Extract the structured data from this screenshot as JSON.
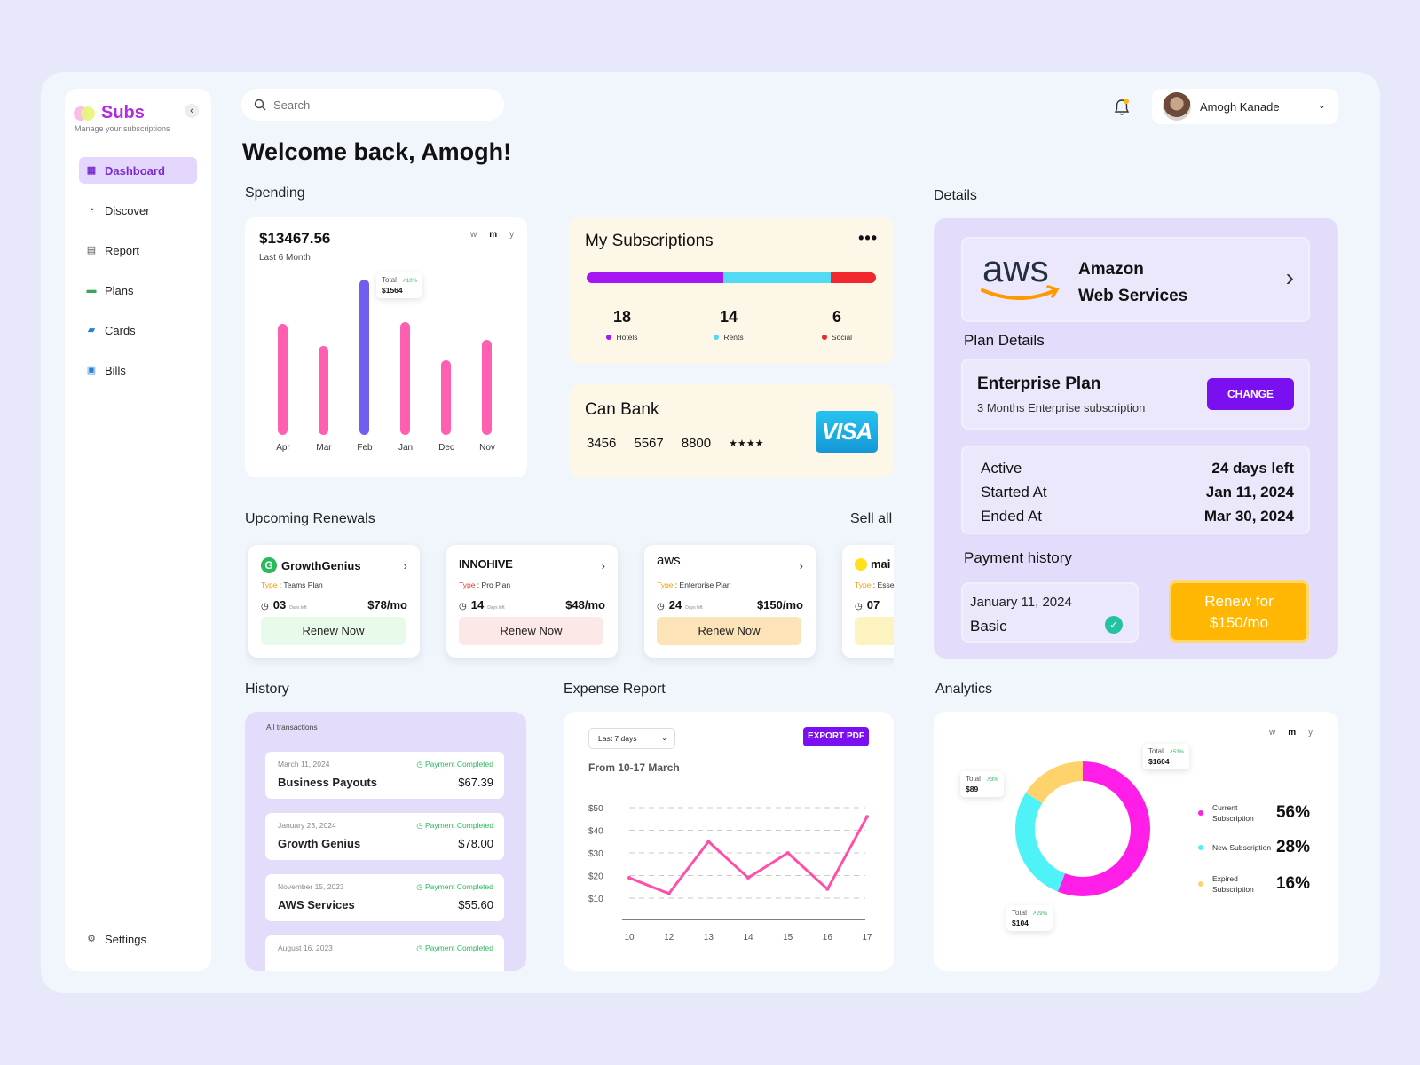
{
  "app": {
    "name": "Subs",
    "tagline": "Manage your subscriptions"
  },
  "sidebar": {
    "items": [
      {
        "label": "Dashboard",
        "icon": "dashboard-icon",
        "active": true
      },
      {
        "label": "Discover",
        "icon": "discover-icon"
      },
      {
        "label": "Report",
        "icon": "report-icon"
      },
      {
        "label": "Plans",
        "icon": "plans-icon"
      },
      {
        "label": "Cards",
        "icon": "cards-icon"
      },
      {
        "label": "Bills",
        "icon": "bills-icon"
      }
    ],
    "settings_label": "Settings"
  },
  "header": {
    "search_placeholder": "Search",
    "user_name": "Amogh Kanade",
    "welcome": "Welcome back, Amogh!"
  },
  "spending": {
    "title": "Spending",
    "amount": "$13467.56",
    "subtitle": "Last 6 Month",
    "ranges": [
      "w",
      "m",
      "y"
    ],
    "tooltip": {
      "label": "Total",
      "change": "↗10%",
      "value": "$1564"
    },
    "chart_data": {
      "type": "bar",
      "categories": [
        "Apr",
        "Mar",
        "Feb",
        "Jan",
        "Dec",
        "Nov"
      ],
      "values": [
        1000,
        800,
        1400,
        1020,
        670,
        860
      ],
      "highlight": "Feb",
      "colors": {
        "bar": "#ff5fb0",
        "highlight": "#6f5ef0"
      }
    }
  },
  "subscriptions": {
    "title": "My Subscriptions",
    "items": [
      {
        "count": "18",
        "label": "Hotels",
        "color": "#a516f2"
      },
      {
        "count": "14",
        "label": "Rents",
        "color": "#52d9f3"
      },
      {
        "count": "6",
        "label": "Social",
        "color": "#f0282e"
      }
    ]
  },
  "bank": {
    "name": "Can Bank",
    "numbers": [
      "3456",
      "5567",
      "8800",
      "★★★★"
    ],
    "brand": "VISA"
  },
  "renewals": {
    "title": "Upcoming Renewals",
    "see_all": "Sell all",
    "type_label": "Type",
    "days_label": "Days left",
    "items": [
      {
        "name": "GrowthGenius",
        "type": "Teams Plan",
        "days": "03",
        "price": "$78/mo",
        "button": "Renew Now",
        "btn_color": "#e8fbea"
      },
      {
        "name": "INNOHIVE",
        "type": "Pro Plan",
        "days": "14",
        "price": "$48/mo",
        "button": "Renew Now",
        "btn_color": "#fde8e8"
      },
      {
        "name": "aws",
        "type": "Enterprise Plan",
        "days": "24",
        "price": "$150/mo",
        "button": "Renew Now",
        "btn_color": "#fde3b8"
      },
      {
        "name": "mai",
        "type": "Esse",
        "days": "07",
        "price": "",
        "button": "",
        "btn_color": "#fdf3c0"
      }
    ]
  },
  "details": {
    "title": "Details",
    "company_line1": "Amazon",
    "company_line2": "Web Services",
    "plan_details_title": "Plan Details",
    "plan_name": "Enterprise Plan",
    "plan_desc": "3 Months Enterprise subscription",
    "change_label": "CHANGE",
    "rows": [
      {
        "label": "Active",
        "value": "24 days left"
      },
      {
        "label": "Started At",
        "value": "Jan 11, 2024"
      },
      {
        "label": "Ended At",
        "value": "Mar 30, 2024"
      }
    ],
    "payment_history_title": "Payment history",
    "payment_date": "January 11, 2024",
    "payment_plan": "Basic",
    "renew_line1": "Renew for",
    "renew_line2": "$150/mo"
  },
  "history": {
    "title": "History",
    "subtitle": "All transactions",
    "items": [
      {
        "date": "March 11, 2024",
        "status": "Payment Completed",
        "name": "Business Payouts",
        "amount": "$67.39"
      },
      {
        "date": "January 23, 2024",
        "status": "Payment Completed",
        "name": "Growth Genius",
        "amount": "$78.00"
      },
      {
        "date": "November 15, 2023",
        "status": "Payment Completed",
        "name": "AWS Services",
        "amount": "$55.60"
      },
      {
        "date": "August 16, 2023",
        "status": "Payment Completed",
        "name": "",
        "amount": ""
      }
    ]
  },
  "expense": {
    "title": "Expense Report",
    "select": "Last 7 days",
    "export_label": "EXPORT PDF",
    "range_label": "From 10-17 March",
    "chart_data": {
      "type": "line",
      "x": [
        "10",
        "12",
        "13",
        "14",
        "15",
        "16",
        "17"
      ],
      "values": [
        19,
        12,
        35,
        19,
        30,
        14,
        46
      ],
      "yticks": [
        "$10",
        "$20",
        "$30",
        "$40",
        "$50"
      ],
      "ylim": [
        0,
        50
      ],
      "grid": true,
      "color": "#ff4fa8"
    }
  },
  "analytics": {
    "title": "Analytics",
    "ranges": [
      "w",
      "m",
      "y"
    ],
    "tooltips": [
      {
        "label": "Total",
        "change": "↗3%",
        "value": "$89"
      },
      {
        "label": "Total",
        "change": "↗53%",
        "value": "$1604"
      },
      {
        "label": "Total",
        "change": "↗29%",
        "value": "$104"
      }
    ],
    "chart_data": {
      "type": "pie",
      "series": [
        {
          "name": "Current Subscription",
          "value": 56,
          "label": "56%",
          "color": "#ff1ee8"
        },
        {
          "name": "New Subscription",
          "value": 28,
          "label": "28%",
          "color": "#4ff2f6"
        },
        {
          "name": "Expired Subscription",
          "value": 16,
          "label": "16%",
          "color": "#ffd36b"
        }
      ]
    }
  }
}
